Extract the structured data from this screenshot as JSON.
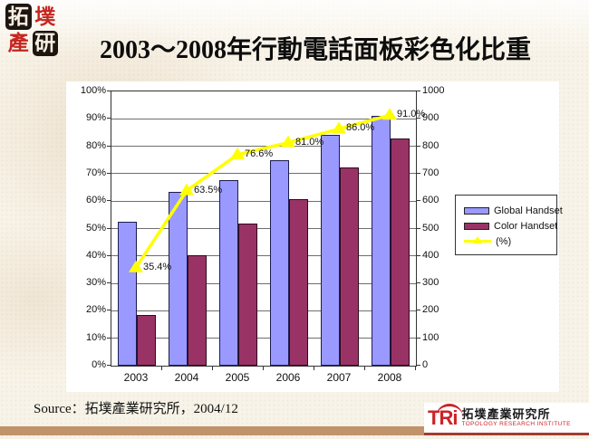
{
  "page": {
    "title": "2003～2008年行動電話面板彩色化比重",
    "source": "Source：拓墣產業研究所，2004/12"
  },
  "logo": {
    "cells": [
      "拓",
      "墣",
      "產",
      "研"
    ]
  },
  "footer": {
    "tri_mark": "TRi",
    "org_cn": "拓墣產業研究所",
    "org_en": "TOPOLOGY RESEARCH INSTITUTE"
  },
  "colors": {
    "global_bar": "#9999FF",
    "global_bar_border": "#1c1c50",
    "color_bar": "#993366",
    "color_bar_border": "#2e0a1e",
    "percent_line": "#FFFF00",
    "footer_bar": "#C0936A",
    "brand_red": "#CC2327"
  },
  "chart_data": {
    "type": "bar",
    "title": "2003～2008年行動電話面板彩色化比重",
    "categories": [
      "2003",
      "2004",
      "2005",
      "2006",
      "2007",
      "2008"
    ],
    "series": [
      {
        "name": "Global Handset",
        "type": "bar",
        "axis": "right",
        "values": [
          525,
          635,
          675,
          750,
          840,
          910
        ]
      },
      {
        "name": "Color Handset",
        "type": "bar",
        "axis": "right",
        "values": [
          186,
          403,
          517,
          608,
          722,
          828
        ]
      },
      {
        "name": "(%)",
        "type": "line",
        "axis": "left",
        "values": [
          35.4,
          63.5,
          76.6,
          81.0,
          86.0,
          91.0
        ],
        "point_labels": [
          "35.4%",
          "63.5%",
          "76.6%",
          "81.0%",
          "86.0%",
          "91.0%"
        ]
      }
    ],
    "left_axis": {
      "min": 0,
      "max": 100,
      "ticks": [
        "100%",
        "90%",
        "80%",
        "70%",
        "60%",
        "50%",
        "40%",
        "30%",
        "20%",
        "10%",
        "0%"
      ]
    },
    "right_axis": {
      "min": 0,
      "max": 1000,
      "ticks": [
        "1000",
        "900",
        "800",
        "700",
        "600",
        "500",
        "400",
        "300",
        "200",
        "100",
        "0"
      ]
    },
    "grid": true,
    "legend_position": "right"
  }
}
